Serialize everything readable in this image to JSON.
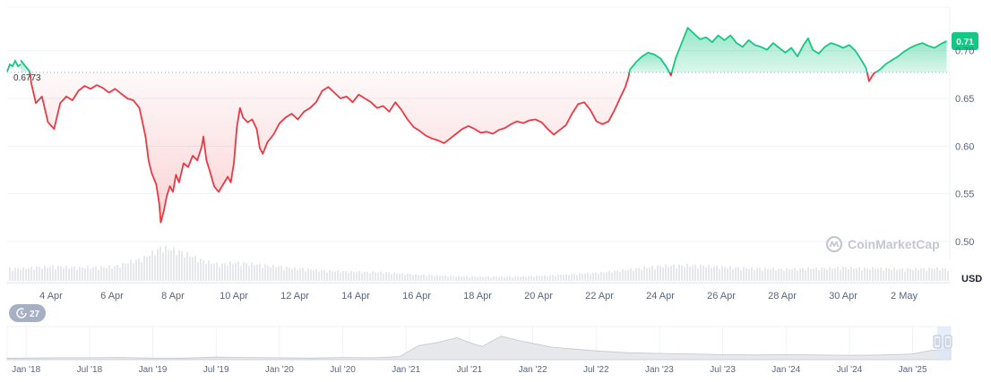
{
  "watermark": "CoinMarketCap",
  "unit": "USD",
  "price_badge": "0.71",
  "baseline_label": "0.6773",
  "history_badge": "27",
  "colors": {
    "up": "#16c784",
    "down": "#ea3943",
    "grid": "#eff2f5",
    "volume": "#e6e8ec",
    "badge": "#16c784",
    "history_badge": "#a6b0c3"
  },
  "chart_data": {
    "type": "line",
    "baseline": 0.6773,
    "ylim": [
      0.5,
      0.725
    ],
    "y_ticks": [
      {
        "value": 0.7,
        "label": "0.70"
      },
      {
        "value": 0.65,
        "label": "0.65"
      },
      {
        "value": 0.6,
        "label": "0.60"
      },
      {
        "value": 0.55,
        "label": "0.55"
      },
      {
        "value": 0.5,
        "label": "0.50"
      }
    ],
    "x_domain": [
      0,
      30.5
    ],
    "x_ticks": [
      {
        "value": 1,
        "label": "4 Apr"
      },
      {
        "value": 3,
        "label": "6 Apr"
      },
      {
        "value": 5,
        "label": "8 Apr"
      },
      {
        "value": 7,
        "label": "10 Apr"
      },
      {
        "value": 9,
        "label": "12 Apr"
      },
      {
        "value": 11,
        "label": "14 Apr"
      },
      {
        "value": 13,
        "label": "16 Apr"
      },
      {
        "value": 15,
        "label": "18 Apr"
      },
      {
        "value": 17,
        "label": "20 Apr"
      },
      {
        "value": 19,
        "label": "22 Apr"
      },
      {
        "value": 21,
        "label": "24 Apr"
      },
      {
        "value": 23,
        "label": "26 Apr"
      },
      {
        "value": 25,
        "label": "28 Apr"
      },
      {
        "value": 27,
        "label": "30 Apr"
      },
      {
        "value": 29,
        "label": "2 May"
      }
    ],
    "series": [
      {
        "points": [
          [
            0.0,
            0.69
          ],
          [
            0.3,
            0.678
          ],
          [
            0.35,
            0.666
          ],
          [
            0.5,
            0.645
          ],
          [
            0.7,
            0.652
          ],
          [
            0.9,
            0.625
          ],
          [
            1.1,
            0.618
          ],
          [
            1.3,
            0.645
          ],
          [
            1.5,
            0.652
          ],
          [
            1.7,
            0.648
          ],
          [
            1.9,
            0.658
          ],
          [
            2.1,
            0.663
          ],
          [
            2.3,
            0.66
          ],
          [
            2.5,
            0.664
          ],
          [
            2.7,
            0.661
          ],
          [
            2.9,
            0.656
          ],
          [
            3.1,
            0.66
          ],
          [
            3.3,
            0.655
          ],
          [
            3.5,
            0.65
          ],
          [
            3.7,
            0.648
          ],
          [
            3.9,
            0.64
          ],
          [
            4.0,
            0.625
          ],
          [
            4.1,
            0.61
          ],
          [
            4.2,
            0.585
          ],
          [
            4.3,
            0.572
          ],
          [
            4.45,
            0.56
          ],
          [
            4.55,
            0.54
          ],
          [
            4.6,
            0.52
          ],
          [
            4.7,
            0.532
          ],
          [
            4.8,
            0.548
          ],
          [
            4.9,
            0.558
          ],
          [
            5.0,
            0.552
          ],
          [
            5.1,
            0.57
          ],
          [
            5.2,
            0.562
          ],
          [
            5.35,
            0.582
          ],
          [
            5.5,
            0.578
          ],
          [
            5.65,
            0.59
          ],
          [
            5.8,
            0.585
          ],
          [
            5.95,
            0.6
          ],
          [
            6.0,
            0.61
          ],
          [
            6.1,
            0.585
          ],
          [
            6.2,
            0.575
          ],
          [
            6.35,
            0.558
          ],
          [
            6.5,
            0.552
          ],
          [
            6.65,
            0.56
          ],
          [
            6.8,
            0.568
          ],
          [
            6.9,
            0.562
          ],
          [
            7.0,
            0.582
          ],
          [
            7.1,
            0.62
          ],
          [
            7.2,
            0.64
          ],
          [
            7.3,
            0.63
          ],
          [
            7.45,
            0.625
          ],
          [
            7.6,
            0.628
          ],
          [
            7.75,
            0.618
          ],
          [
            7.85,
            0.598
          ],
          [
            7.95,
            0.592
          ],
          [
            8.1,
            0.604
          ],
          [
            8.3,
            0.612
          ],
          [
            8.5,
            0.624
          ],
          [
            8.7,
            0.63
          ],
          [
            8.9,
            0.634
          ],
          [
            9.1,
            0.628
          ],
          [
            9.3,
            0.636
          ],
          [
            9.5,
            0.64
          ],
          [
            9.7,
            0.646
          ],
          [
            9.9,
            0.658
          ],
          [
            10.1,
            0.662
          ],
          [
            10.3,
            0.656
          ],
          [
            10.5,
            0.65
          ],
          [
            10.7,
            0.652
          ],
          [
            10.9,
            0.646
          ],
          [
            11.1,
            0.654
          ],
          [
            11.3,
            0.65
          ],
          [
            11.5,
            0.646
          ],
          [
            11.7,
            0.64
          ],
          [
            11.9,
            0.642
          ],
          [
            12.1,
            0.636
          ],
          [
            12.3,
            0.646
          ],
          [
            12.5,
            0.638
          ],
          [
            12.7,
            0.628
          ],
          [
            12.9,
            0.62
          ],
          [
            13.1,
            0.616
          ],
          [
            13.3,
            0.611
          ],
          [
            13.5,
            0.608
          ],
          [
            13.7,
            0.606
          ],
          [
            13.9,
            0.603
          ],
          [
            14.1,
            0.608
          ],
          [
            14.3,
            0.613
          ],
          [
            14.5,
            0.618
          ],
          [
            14.7,
            0.621
          ],
          [
            14.9,
            0.618
          ],
          [
            15.1,
            0.614
          ],
          [
            15.3,
            0.615
          ],
          [
            15.5,
            0.613
          ],
          [
            15.7,
            0.617
          ],
          [
            15.9,
            0.619
          ],
          [
            16.1,
            0.623
          ],
          [
            16.3,
            0.626
          ],
          [
            16.5,
            0.624
          ],
          [
            16.7,
            0.627
          ],
          [
            16.9,
            0.628
          ],
          [
            17.1,
            0.625
          ],
          [
            17.3,
            0.618
          ],
          [
            17.5,
            0.612
          ],
          [
            17.7,
            0.617
          ],
          [
            17.9,
            0.622
          ],
          [
            18.1,
            0.634
          ],
          [
            18.3,
            0.644
          ],
          [
            18.5,
            0.646
          ],
          [
            18.7,
            0.638
          ],
          [
            18.9,
            0.626
          ],
          [
            19.1,
            0.623
          ],
          [
            19.3,
            0.626
          ],
          [
            19.5,
            0.638
          ],
          [
            19.7,
            0.652
          ],
          [
            19.85,
            0.662
          ],
          [
            19.95,
            0.672
          ],
          [
            20.0,
            0.68
          ],
          [
            20.2,
            0.688
          ],
          [
            20.4,
            0.694
          ],
          [
            20.6,
            0.698
          ],
          [
            20.8,
            0.696
          ],
          [
            21.0,
            0.692
          ],
          [
            21.2,
            0.683
          ],
          [
            21.35,
            0.674
          ],
          [
            21.5,
            0.692
          ],
          [
            21.65,
            0.704
          ],
          [
            21.8,
            0.716
          ],
          [
            21.9,
            0.724
          ],
          [
            22.1,
            0.718
          ],
          [
            22.3,
            0.712
          ],
          [
            22.5,
            0.714
          ],
          [
            22.7,
            0.709
          ],
          [
            22.9,
            0.716
          ],
          [
            23.1,
            0.711
          ],
          [
            23.3,
            0.716
          ],
          [
            23.5,
            0.708
          ],
          [
            23.7,
            0.704
          ],
          [
            23.9,
            0.711
          ],
          [
            24.1,
            0.706
          ],
          [
            24.3,
            0.704
          ],
          [
            24.5,
            0.701
          ],
          [
            24.7,
            0.708
          ],
          [
            24.9,
            0.703
          ],
          [
            25.1,
            0.698
          ],
          [
            25.3,
            0.703
          ],
          [
            25.5,
            0.694
          ],
          [
            25.7,
            0.706
          ],
          [
            25.85,
            0.713
          ],
          [
            26.0,
            0.701
          ],
          [
            26.2,
            0.697
          ],
          [
            26.4,
            0.704
          ],
          [
            26.6,
            0.708
          ],
          [
            26.8,
            0.706
          ],
          [
            27.0,
            0.703
          ],
          [
            27.2,
            0.706
          ],
          [
            27.4,
            0.7
          ],
          [
            27.6,
            0.69
          ],
          [
            27.75,
            0.682
          ],
          [
            27.85,
            0.668
          ],
          [
            28.0,
            0.676
          ],
          [
            28.2,
            0.68
          ],
          [
            28.4,
            0.686
          ],
          [
            28.6,
            0.69
          ],
          [
            28.8,
            0.694
          ],
          [
            29.0,
            0.699
          ],
          [
            29.2,
            0.703
          ],
          [
            29.4,
            0.706
          ],
          [
            29.6,
            0.708
          ],
          [
            29.8,
            0.705
          ],
          [
            30.0,
            0.703
          ],
          [
            30.2,
            0.707
          ],
          [
            30.4,
            0.71
          ]
        ]
      }
    ],
    "volume": [
      [
        0,
        0.3
      ],
      [
        1,
        0.35
      ],
      [
        2,
        0.32
      ],
      [
        3,
        0.34
      ],
      [
        4,
        0.55
      ],
      [
        4.6,
        0.8
      ],
      [
        5,
        0.75
      ],
      [
        5.5,
        0.62
      ],
      [
        6,
        0.48
      ],
      [
        6.5,
        0.4
      ],
      [
        7,
        0.44
      ],
      [
        8,
        0.38
      ],
      [
        9,
        0.3
      ],
      [
        10,
        0.24
      ],
      [
        11,
        0.22
      ],
      [
        12,
        0.2
      ],
      [
        13,
        0.15
      ],
      [
        14,
        0.12
      ],
      [
        15,
        0.1
      ],
      [
        16,
        0.1
      ],
      [
        17,
        0.12
      ],
      [
        18,
        0.16
      ],
      [
        19,
        0.2
      ],
      [
        20,
        0.28
      ],
      [
        21,
        0.36
      ],
      [
        22,
        0.38
      ],
      [
        23,
        0.34
      ],
      [
        24,
        0.3
      ],
      [
        25,
        0.28
      ],
      [
        26,
        0.3
      ],
      [
        27,
        0.32
      ],
      [
        28,
        0.3
      ],
      [
        29,
        0.28
      ],
      [
        30,
        0.3
      ],
      [
        30.5,
        0.28
      ]
    ],
    "navigator": {
      "x_ticks": [
        {
          "value": 0,
          "label": "Jan '18"
        },
        {
          "value": 1,
          "label": "Jul '18"
        },
        {
          "value": 2,
          "label": "Jan '19"
        },
        {
          "value": 3,
          "label": "Jul '19"
        },
        {
          "value": 4,
          "label": "Jan '20"
        },
        {
          "value": 5,
          "label": "Jul '20"
        },
        {
          "value": 6,
          "label": "Jan '21"
        },
        {
          "value": 7,
          "label": "Jul '21"
        },
        {
          "value": 8,
          "label": "Jan '22"
        },
        {
          "value": 9,
          "label": "Jul '22"
        },
        {
          "value": 10,
          "label": "Jan '23"
        },
        {
          "value": 11,
          "label": "Jul '23"
        },
        {
          "value": 12,
          "label": "Jan '24"
        },
        {
          "value": 13,
          "label": "Jul '24"
        },
        {
          "value": 14,
          "label": "Jan '25"
        }
      ],
      "x_domain": [
        -0.3,
        14.6
      ],
      "points": [
        [
          -0.3,
          0.05
        ],
        [
          0,
          0.05
        ],
        [
          0.5,
          0.06
        ],
        [
          1,
          0.06
        ],
        [
          1.5,
          0.07
        ],
        [
          2,
          0.05
        ],
        [
          2.5,
          0.05
        ],
        [
          3,
          0.08
        ],
        [
          3.5,
          0.07
        ],
        [
          4,
          0.06
        ],
        [
          4.5,
          0.05
        ],
        [
          5,
          0.07
        ],
        [
          5.5,
          0.06
        ],
        [
          5.9,
          0.1
        ],
        [
          6.2,
          0.45
        ],
        [
          6.5,
          0.55
        ],
        [
          6.8,
          0.7
        ],
        [
          7.0,
          0.55
        ],
        [
          7.2,
          0.42
        ],
        [
          7.5,
          0.75
        ],
        [
          7.8,
          0.6
        ],
        [
          8.0,
          0.52
        ],
        [
          8.3,
          0.4
        ],
        [
          8.6,
          0.35
        ],
        [
          9.0,
          0.28
        ],
        [
          9.5,
          0.22
        ],
        [
          10.0,
          0.2
        ],
        [
          10.5,
          0.18
        ],
        [
          11.0,
          0.16
        ],
        [
          11.5,
          0.15
        ],
        [
          12.0,
          0.16
        ],
        [
          12.5,
          0.15
        ],
        [
          13.0,
          0.14
        ],
        [
          13.5,
          0.15
        ],
        [
          14.0,
          0.18
        ],
        [
          14.3,
          0.3
        ],
        [
          14.6,
          0.32
        ]
      ]
    }
  }
}
